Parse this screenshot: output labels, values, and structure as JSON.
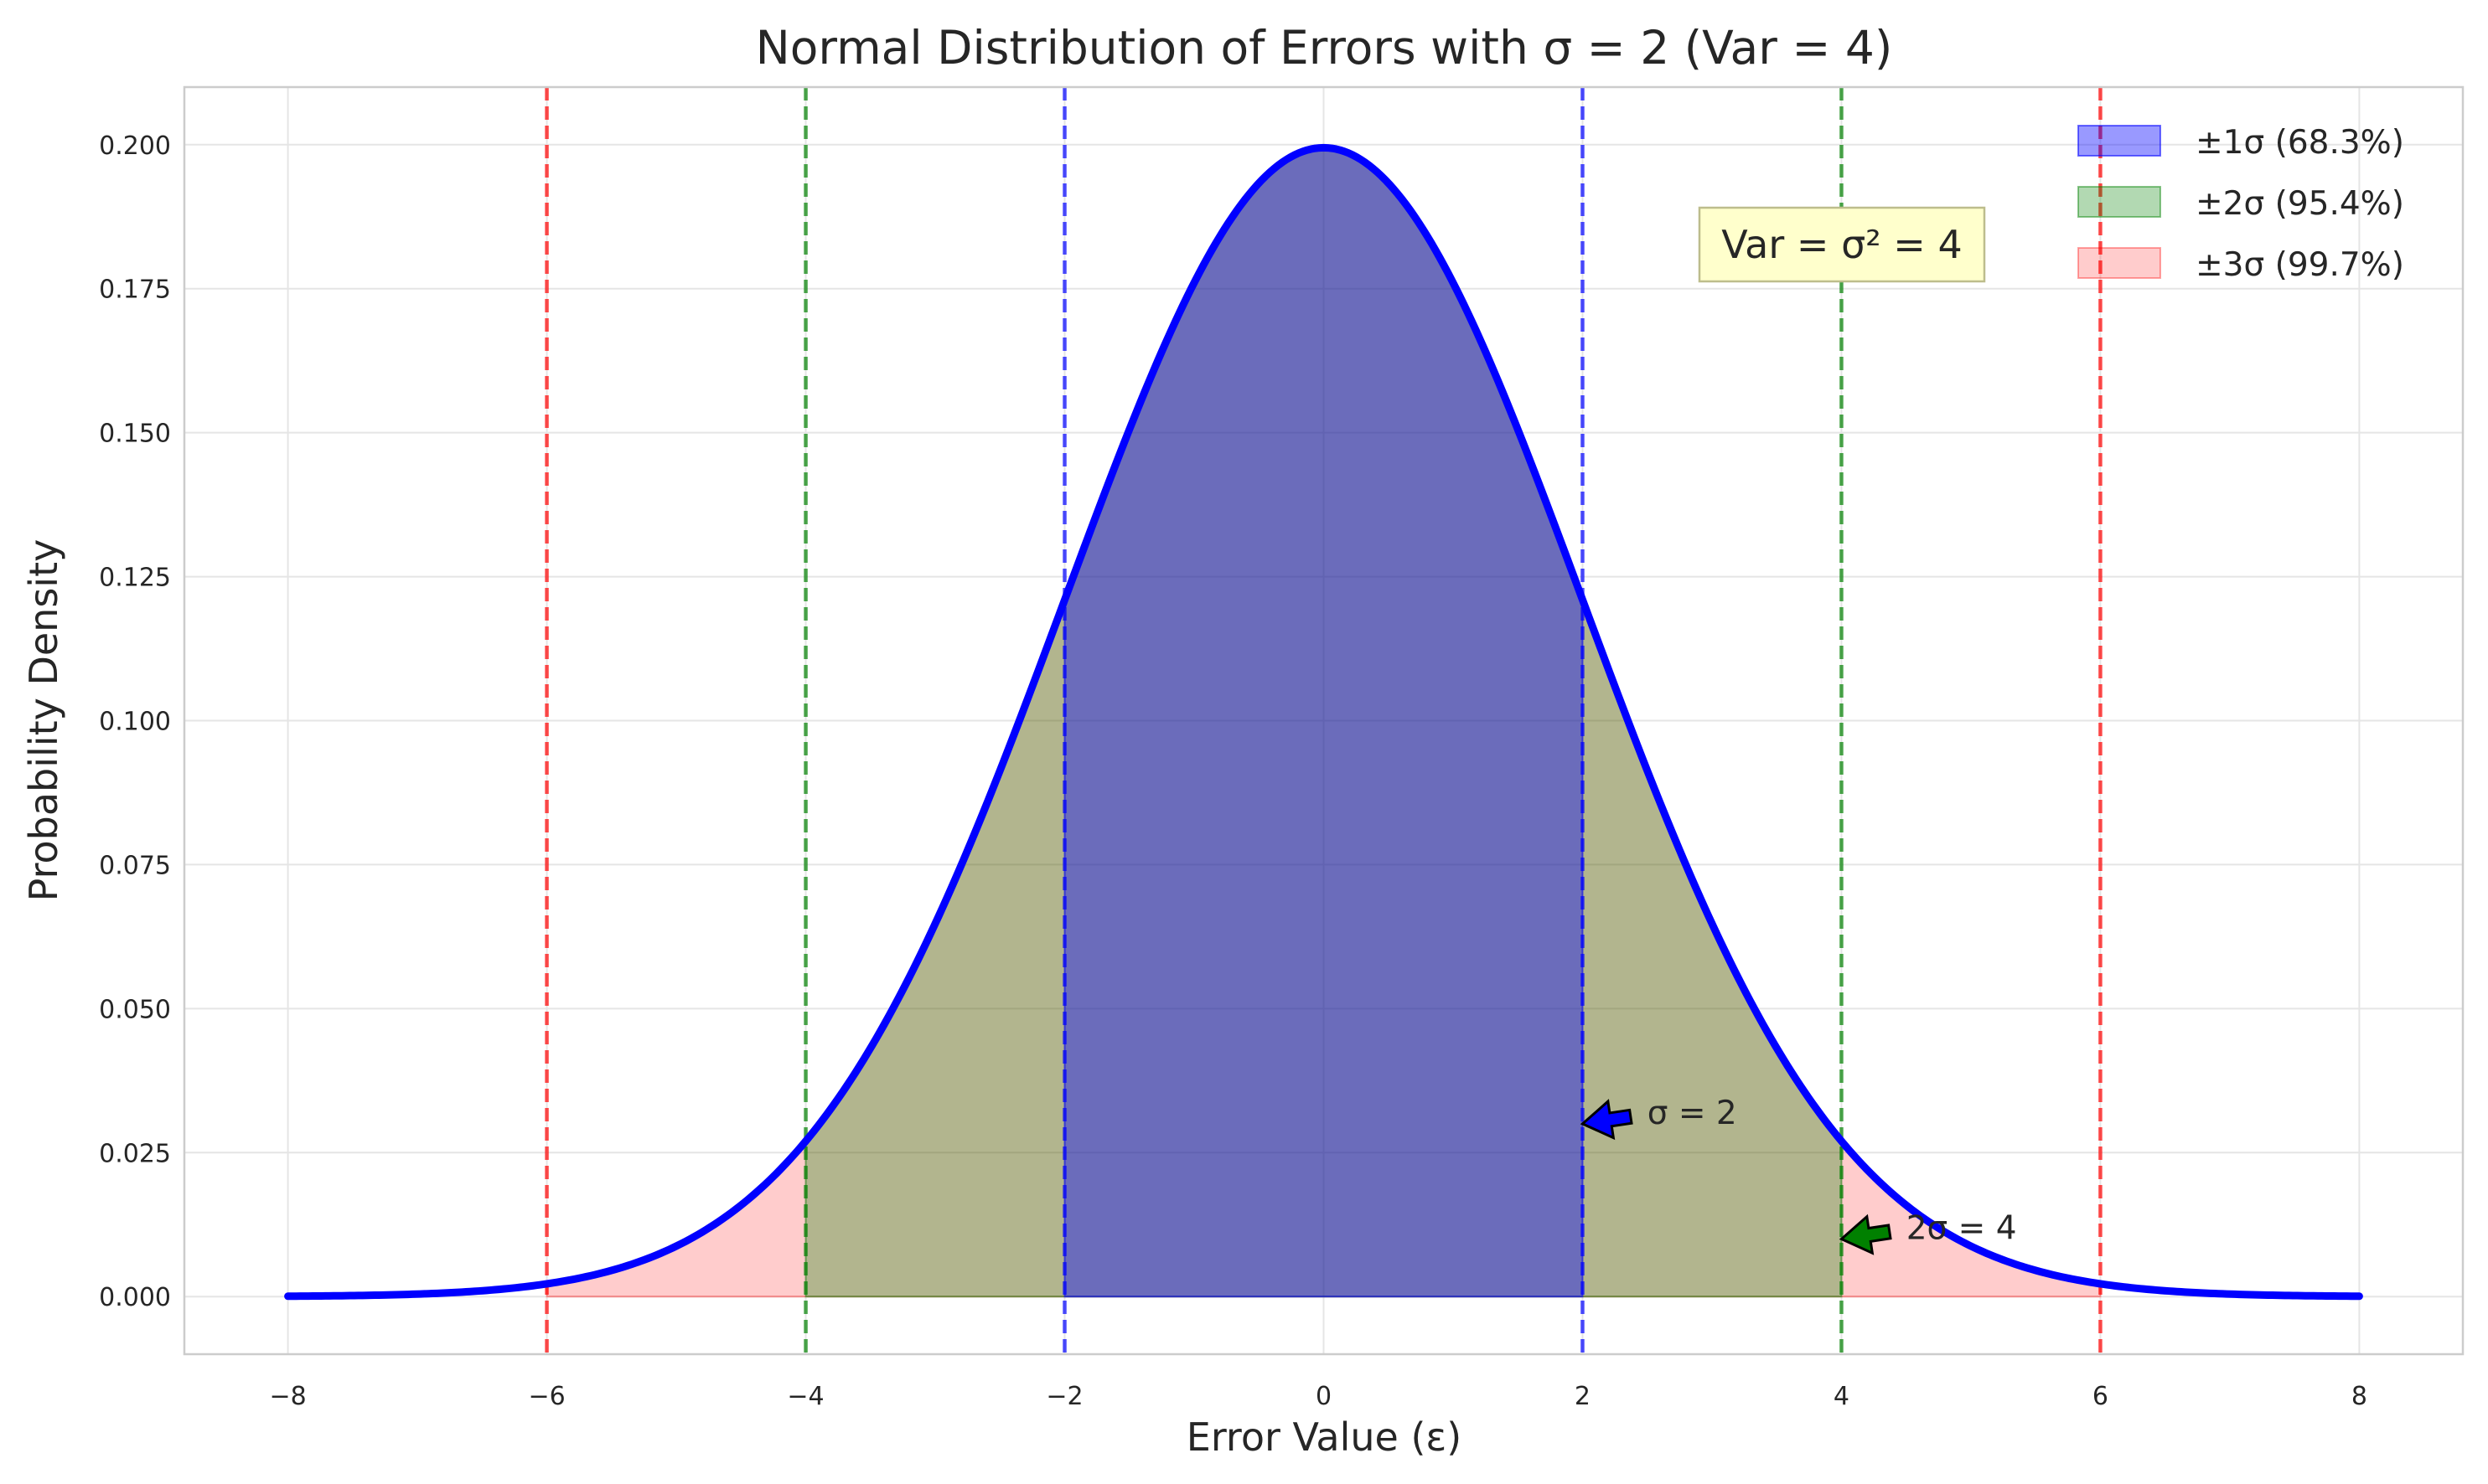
{
  "chart_data": {
    "type": "area",
    "title": "Normal Distribution of Errors with σ = 2 (Var = 4)",
    "xlabel": "Error Value (ε)",
    "ylabel": "Probability Density",
    "xlim": [
      -8.8,
      8.8
    ],
    "ylim": [
      -0.01,
      0.21
    ],
    "xticks": [
      -8,
      -6,
      -4,
      -2,
      0,
      2,
      4,
      6,
      8
    ],
    "xtick_labels": [
      "−8",
      "−6",
      "−4",
      "−2",
      "0",
      "2",
      "4",
      "6",
      "8"
    ],
    "yticks": [
      0.0,
      0.025,
      0.05,
      0.075,
      0.1,
      0.125,
      0.15,
      0.175,
      0.2
    ],
    "ytick_labels": [
      "0.000",
      "0.025",
      "0.050",
      "0.075",
      "0.100",
      "0.125",
      "0.150",
      "0.175",
      "0.200"
    ],
    "grid": true,
    "legend_position": "upper-right",
    "curve": {
      "mean": 0,
      "sigma": 2,
      "x_range": [
        -8,
        8
      ],
      "color": "#0000ff"
    },
    "bands": [
      {
        "label": "±1σ (68.3%)",
        "range": [
          -2,
          2
        ],
        "color": "#0000ff",
        "alpha": 0.4
      },
      {
        "label": "±2σ (95.4%)",
        "range": [
          -4,
          4
        ],
        "color": "#008000",
        "alpha": 0.3
      },
      {
        "label": "±3σ (99.7%)",
        "range": [
          -6,
          6
        ],
        "color": "#ff0000",
        "alpha": 0.2
      }
    ],
    "vlines": [
      {
        "x": -2,
        "color": "#0000ff"
      },
      {
        "x": 2,
        "color": "#0000ff"
      },
      {
        "x": -4,
        "color": "#008000"
      },
      {
        "x": 4,
        "color": "#008000"
      },
      {
        "x": -6,
        "color": "#ff0000"
      },
      {
        "x": 6,
        "color": "#ff0000"
      }
    ],
    "annotations": [
      {
        "text": "σ = 2",
        "point": [
          2,
          0.03
        ],
        "text_at": [
          2.5,
          0.032
        ],
        "color": "#0000ff"
      },
      {
        "text": "2σ = 4",
        "point": [
          4,
          0.01
        ],
        "text_at": [
          4.5,
          0.012
        ],
        "color": "#008000"
      }
    ],
    "textbox": {
      "text": "Var = σ² = 4",
      "at": [
        3.0,
        0.181
      ],
      "bg": "#ffffcc"
    }
  }
}
